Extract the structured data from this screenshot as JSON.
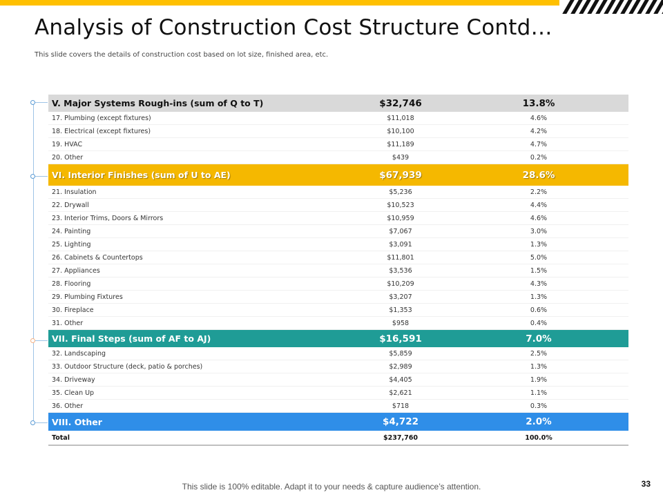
{
  "title": "Analysis of Construction Cost Structure Contd…",
  "subtitle": "This slide covers the details of construction cost based on lot size, finished area, etc.",
  "colors": {
    "accent": "#FFC000",
    "gray_header": "#D9D9D9",
    "yellow_header": "#F5B800",
    "teal_header": "#1F9C96",
    "blue_header": "#2F8EE8"
  },
  "sections": [
    {
      "label": "V. Major Systems Rough-ins (sum of Q to T)",
      "amount": "$32,746",
      "percent": "13.8%",
      "items": [
        {
          "label": "17. Plumbing (except fixtures)",
          "amount": "$11,018",
          "percent": "4.6%"
        },
        {
          "label": "18. Electrical (except fixtures)",
          "amount": "$10,100",
          "percent": "4.2%"
        },
        {
          "label": "19. HVAC",
          "amount": "$11,189",
          "percent": "4.7%"
        },
        {
          "label": "20. Other",
          "amount": "$439",
          "percent": "0.2%"
        }
      ]
    },
    {
      "label": "VI. Interior Finishes (sum of U to AE)",
      "amount": "$67,939",
      "percent": "28.6%",
      "items": [
        {
          "label": "21. Insulation",
          "amount": "$5,236",
          "percent": "2.2%"
        },
        {
          "label": "22. Drywall",
          "amount": "$10,523",
          "percent": "4.4%"
        },
        {
          "label": "23. Interior Trims, Doors & Mirrors",
          "amount": "$10,959",
          "percent": "4.6%"
        },
        {
          "label": "24. Painting",
          "amount": "$7,067",
          "percent": "3.0%"
        },
        {
          "label": "25. Lighting",
          "amount": "$3,091",
          "percent": "1.3%"
        },
        {
          "label": "26. Cabinets & Countertops",
          "amount": "$11,801",
          "percent": "5.0%"
        },
        {
          "label": "27. Appliances",
          "amount": "$3,536",
          "percent": "1.5%"
        },
        {
          "label": "28. Flooring",
          "amount": "$10,209",
          "percent": "4.3%"
        },
        {
          "label": "29. Plumbing Fixtures",
          "amount": "$3,207",
          "percent": "1.3%"
        },
        {
          "label": "30. Fireplace",
          "amount": "$1,353",
          "percent": "0.6%"
        },
        {
          "label": "31. Other",
          "amount": "$958",
          "percent": "0.4%"
        }
      ]
    },
    {
      "label": "VII. Final Steps (sum of AF to AJ)",
      "amount": "$16,591",
      "percent": "7.0%",
      "items": [
        {
          "label": "32. Landscaping",
          "amount": "$5,859",
          "percent": "2.5%"
        },
        {
          "label": "33. Outdoor Structure (deck, patio & porches)",
          "amount": "$2,989",
          "percent": "1.3%"
        },
        {
          "label": "34. Driveway",
          "amount": "$4,405",
          "percent": "1.9%"
        },
        {
          "label": "35. Clean Up",
          "amount": "$2,621",
          "percent": "1.1%"
        },
        {
          "label": "36. Other",
          "amount": "$718",
          "percent": "0.3%"
        }
      ]
    },
    {
      "label": "VIII. Other",
      "amount": "$4,722",
      "percent": "2.0%",
      "items": []
    }
  ],
  "total": {
    "label": "Total",
    "amount": "$237,760",
    "percent": "100.0%"
  },
  "footer": "This slide is 100% editable. Adapt it to your needs & capture audience’s attention.",
  "page_number": "33"
}
